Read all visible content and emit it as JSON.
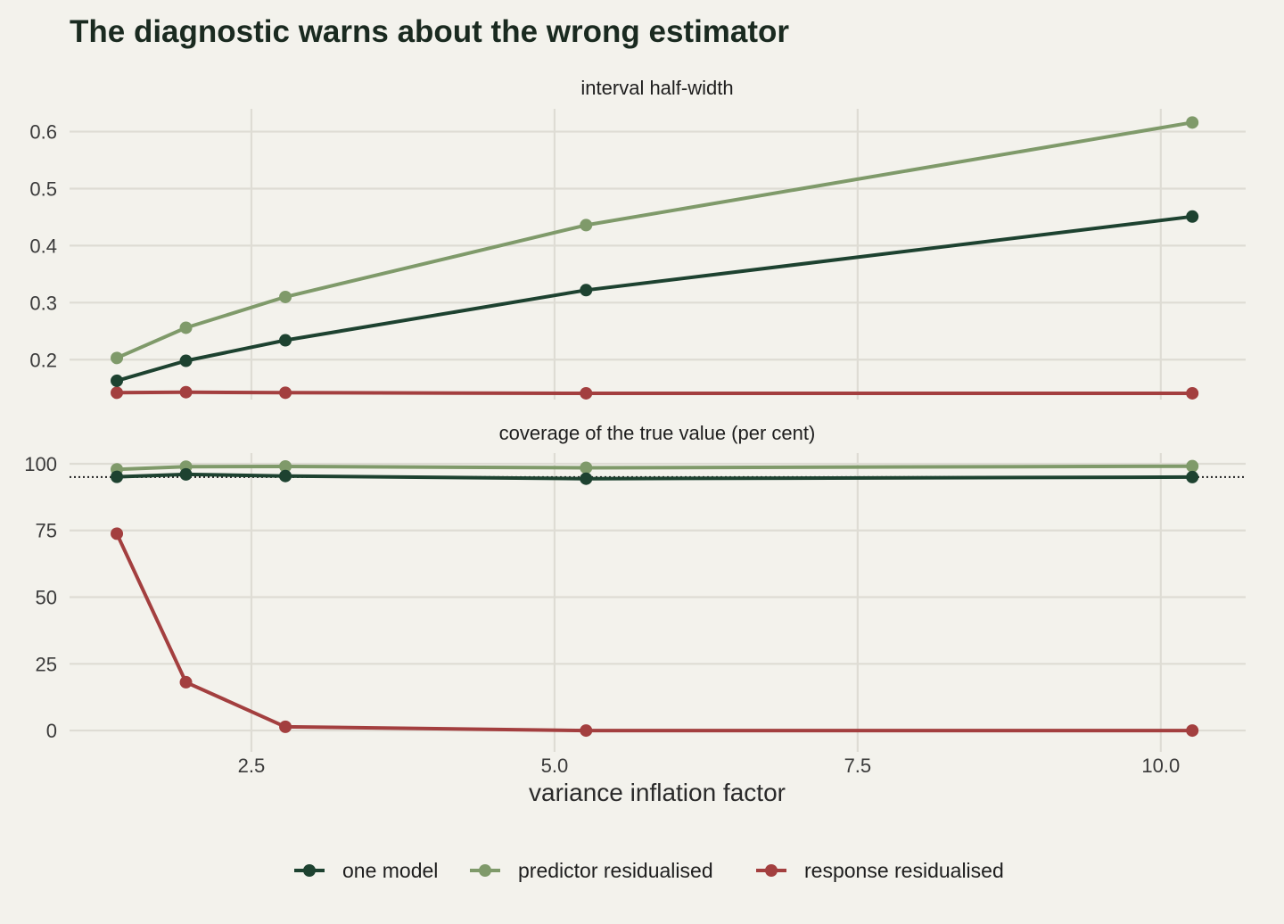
{
  "title": "The diagnostic warns about the wrong estimator",
  "colors": {
    "background": "#f3f2ec",
    "grid": "#dedcd4",
    "one_model": "#1d4230",
    "predictor_residualised": "#7f9a6a",
    "response_residualised": "#a33f3f"
  },
  "chart_data": {
    "type": "line",
    "xlabel": "variance inflation factor",
    "xlim": [
      1.0,
      10.7
    ],
    "x_ticks": [
      "2.5",
      "5.0",
      "7.5",
      "10.0"
    ],
    "legend": {
      "position": "bottom",
      "entries": [
        "one model",
        "predictor residualised",
        "response residualised"
      ]
    },
    "grid": true,
    "panels": [
      {
        "title": "interval half-width",
        "ylim": [
          0.13,
          0.64
        ],
        "y_ticks": [
          "0.2",
          "0.3",
          "0.4",
          "0.5",
          "0.6"
        ],
        "x": [
          1.39,
          1.96,
          2.78,
          5.26,
          10.26
        ],
        "series": [
          {
            "name": "one model",
            "values": [
              0.163,
              0.198,
              0.234,
              0.322,
              0.451
            ]
          },
          {
            "name": "predictor residualised",
            "values": [
              0.203,
              0.256,
              0.31,
              0.436,
              0.616
            ]
          },
          {
            "name": "response residualised",
            "values": [
              0.142,
              0.143,
              0.142,
              0.141,
              0.141
            ]
          }
        ]
      },
      {
        "title": "coverage of the true value (per cent)",
        "ylim": [
          -8,
          104
        ],
        "y_ticks": [
          "0",
          "25",
          "50",
          "75",
          "100"
        ],
        "reference_line": 95,
        "x": [
          1.39,
          1.96,
          2.78,
          5.26,
          10.26
        ],
        "series": [
          {
            "name": "one model",
            "values": [
              95.1,
              96.0,
              95.4,
              94.4,
              95.0
            ]
          },
          {
            "name": "predictor residualised",
            "values": [
              97.9,
              98.9,
              99.0,
              98.5,
              99.1
            ]
          },
          {
            "name": "response residualised",
            "values": [
              73.8,
              18.1,
              1.4,
              0.0,
              0.0
            ]
          }
        ]
      }
    ]
  }
}
